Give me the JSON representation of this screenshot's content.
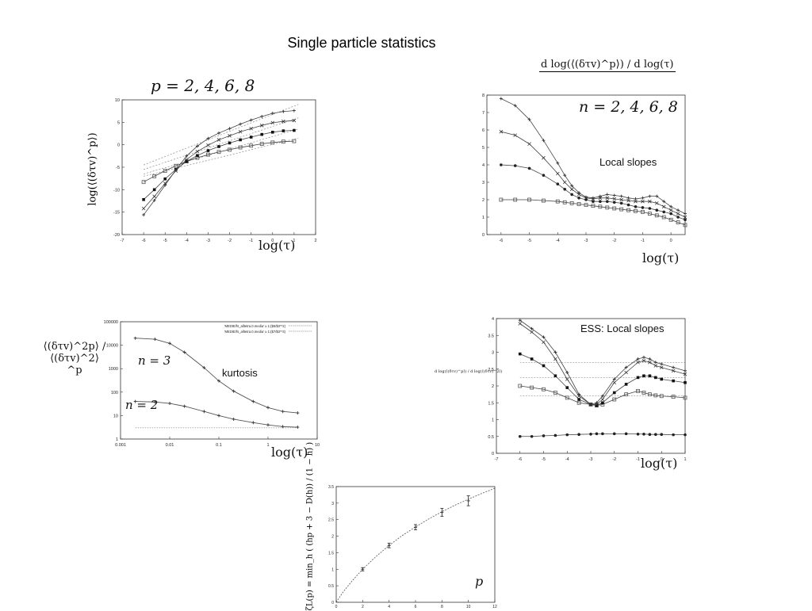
{
  "page": {
    "title": "Single particle statistics"
  },
  "chart_data": [
    {
      "id": "moments",
      "type": "line",
      "title": "p = 2, 4, 6, 8",
      "ylabel": "log(⟨(δτv)^p⟩)",
      "xlabel": "log(τ)",
      "xlim": [
        -7,
        2
      ],
      "ylim": [
        -20,
        10
      ],
      "xticks": [
        -7,
        -6,
        -5,
        -4,
        -3,
        -2,
        -1,
        0,
        1,
        2
      ],
      "yticks": [
        -20,
        -15,
        -10,
        -5,
        0,
        5,
        10
      ],
      "x": [
        -6,
        -5.5,
        -5,
        -4.5,
        -4,
        -3.5,
        -3,
        -2.5,
        -2,
        -1.5,
        -1,
        -0.5,
        0,
        0.5,
        1
      ],
      "series": [
        {
          "values": [
            -8.3,
            -7.0,
            -5.8,
            -4.7,
            -3.7,
            -2.9,
            -2.2,
            -1.6,
            -1.1,
            -0.6,
            -0.2,
            0.2,
            0.5,
            0.7,
            0.8
          ]
        },
        {
          "values": [
            -12.2,
            -10.0,
            -7.6,
            -5.5,
            -3.7,
            -2.4,
            -1.3,
            -0.4,
            0.4,
            1.1,
            1.7,
            2.3,
            2.8,
            3.1,
            3.2
          ]
        },
        {
          "values": [
            -14.2,
            -11.5,
            -8.6,
            -5.8,
            -3.3,
            -1.5,
            -0.1,
            1.1,
            2.0,
            2.9,
            3.6,
            4.3,
            4.9,
            5.2,
            5.4
          ]
        },
        {
          "values": [
            -15.6,
            -12.4,
            -9.0,
            -5.6,
            -2.5,
            -0.3,
            1.4,
            2.6,
            3.6,
            4.6,
            5.5,
            6.3,
            7.0,
            7.4,
            7.6
          ]
        }
      ],
      "guides": [
        {
          "x": [
            -6,
            1.2
          ],
          "y": [
            -4.5,
            9.0
          ]
        },
        {
          "x": [
            -6,
            1.2
          ],
          "y": [
            -5.5,
            6.0
          ]
        },
        {
          "x": [
            -6,
            1.2
          ],
          "y": [
            -6.5,
            3.5
          ]
        },
        {
          "x": [
            -6,
            1.2
          ],
          "y": [
            -7.0,
            1.5
          ]
        }
      ]
    },
    {
      "id": "local-slopes",
      "type": "line",
      "title": "d log(⟨(δτv)^p⟩) / d log(τ)",
      "label_n": "n = 2, 4, 6, 8",
      "annotation": "Local slopes",
      "xlabel": "log(τ)",
      "xlim": [
        -6.5,
        0.5
      ],
      "ylim": [
        0,
        8
      ],
      "xticks": [
        -6,
        -5,
        -4,
        -3,
        -2,
        -1,
        0
      ],
      "yticks": [
        0,
        1,
        2,
        3,
        4,
        5,
        6,
        7,
        8
      ],
      "x": [
        -6,
        -5.5,
        -5,
        -4.5,
        -4,
        -3.75,
        -3.5,
        -3.25,
        -3,
        -2.75,
        -2.5,
        -2.25,
        -2,
        -1.75,
        -1.5,
        -1.25,
        -1,
        -0.75,
        -0.5,
        -0.25,
        0,
        0.25,
        0.5
      ],
      "series": [
        {
          "values": [
            2.0,
            2.0,
            2.0,
            1.95,
            1.9,
            1.85,
            1.8,
            1.75,
            1.7,
            1.65,
            1.6,
            1.55,
            1.5,
            1.45,
            1.4,
            1.35,
            1.3,
            1.2,
            1.1,
            1.0,
            0.85,
            0.7,
            0.55
          ]
        },
        {
          "values": [
            4.0,
            3.95,
            3.8,
            3.4,
            2.9,
            2.6,
            2.3,
            2.1,
            2.0,
            1.9,
            1.9,
            1.9,
            1.85,
            1.8,
            1.7,
            1.6,
            1.55,
            1.5,
            1.4,
            1.3,
            1.2,
            1.0,
            0.85
          ]
        },
        {
          "values": [
            5.9,
            5.7,
            5.2,
            4.4,
            3.5,
            3.0,
            2.6,
            2.3,
            2.1,
            2.05,
            2.1,
            2.1,
            2.05,
            2.0,
            1.95,
            1.9,
            1.9,
            1.9,
            1.8,
            1.6,
            1.4,
            1.2,
            1.0
          ]
        },
        {
          "values": [
            7.8,
            7.4,
            6.6,
            5.4,
            4.1,
            3.4,
            2.8,
            2.4,
            2.15,
            2.1,
            2.2,
            2.3,
            2.25,
            2.2,
            2.1,
            2.05,
            2.1,
            2.2,
            2.2,
            1.9,
            1.6,
            1.4,
            1.2
          ]
        }
      ]
    },
    {
      "id": "kurtosis",
      "type": "line",
      "ylabel": "⟨(δτv)^2p⟩ / ⟨(δτv)^2⟩^p",
      "xlabel": "log(τ)",
      "annotation": "kurtosis",
      "scale": "log-log",
      "xlim": [
        0.001,
        10
      ],
      "ylim": [
        1,
        100000
      ],
      "xticks": [
        "0.001",
        "0.01",
        "0.1",
        "1",
        "10"
      ],
      "yticks": [
        "1",
        "10",
        "100",
        "1000",
        "10000",
        "100000"
      ],
      "legend": [
        "'MEDIE/fs_alltetra.0.media' u 1:($5/$3**2)",
        "'MEDIE/fs_alltetra.0.media' u 1:($7/$3**3)"
      ],
      "legend_position": "top-right",
      "series": [
        {
          "name": "n = 2",
          "x": [
            0.002,
            0.005,
            0.01,
            0.02,
            0.05,
            0.1,
            0.2,
            0.5,
            1,
            2,
            4
          ],
          "values": [
            40,
            38,
            33,
            25,
            15,
            10,
            7,
            5,
            4,
            3.4,
            3.2
          ]
        },
        {
          "name": "n = 3",
          "x": [
            0.002,
            0.005,
            0.01,
            0.02,
            0.05,
            0.1,
            0.2,
            0.5,
            1,
            2,
            4
          ],
          "values": [
            20000,
            18000,
            12000,
            5000,
            1100,
            300,
            110,
            40,
            22,
            15,
            13
          ]
        }
      ],
      "reference": {
        "x": [
          0.002,
          4
        ],
        "value": 3
      }
    },
    {
      "id": "ess-local-slopes",
      "type": "line",
      "annotation": "ESS: Local slopes",
      "ylabel": "d log(⟨(δτv)^p⟩) / d log(⟨(δτv)^2⟩)",
      "xlabel": "log(τ)",
      "xlim": [
        -7,
        1
      ],
      "ylim": [
        0,
        4
      ],
      "xticks": [
        -7,
        -6,
        -5,
        -4,
        -3,
        -2,
        -1,
        0,
        1
      ],
      "yticks": [
        0,
        0.5,
        1,
        1.5,
        2,
        2.5,
        3,
        3.5,
        4
      ],
      "x": [
        -6,
        -5.5,
        -5,
        -4.5,
        -4,
        -3.5,
        -3,
        -2.75,
        -2.5,
        -2,
        -1.5,
        -1,
        -0.75,
        -0.5,
        -0.25,
        0,
        0.5,
        1
      ],
      "series": [
        {
          "values": [
            0.5,
            0.5,
            0.52,
            0.53,
            0.55,
            0.56,
            0.57,
            0.58,
            0.58,
            0.58,
            0.58,
            0.57,
            0.57,
            0.56,
            0.56,
            0.56,
            0.55,
            0.55
          ]
        },
        {
          "values": [
            2.0,
            1.95,
            1.9,
            1.8,
            1.65,
            1.5,
            1.45,
            1.42,
            1.45,
            1.6,
            1.75,
            1.85,
            1.8,
            1.75,
            1.72,
            1.7,
            1.68,
            1.65
          ]
        },
        {
          "values": [
            2.95,
            2.8,
            2.6,
            2.3,
            1.95,
            1.6,
            1.45,
            1.42,
            1.5,
            1.8,
            2.05,
            2.25,
            2.3,
            2.3,
            2.25,
            2.2,
            2.15,
            2.1
          ]
        },
        {
          "values": [
            3.85,
            3.6,
            3.3,
            2.8,
            2.2,
            1.7,
            1.45,
            1.45,
            1.6,
            2.1,
            2.4,
            2.7,
            2.75,
            2.7,
            2.6,
            2.55,
            2.45,
            2.35
          ]
        },
        {
          "values": [
            3.95,
            3.7,
            3.45,
            3.0,
            2.4,
            1.75,
            1.45,
            1.5,
            1.7,
            2.2,
            2.55,
            2.8,
            2.85,
            2.8,
            2.7,
            2.65,
            2.55,
            2.45
          ]
        }
      ],
      "references": [
        1.7,
        2.25,
        2.7
      ]
    },
    {
      "id": "scaling-exponents",
      "type": "line",
      "ylabel": "ζL(p) = min_h ( (hp + 3 − D(h)) / (1 − h) )",
      "xlabel": "p",
      "xlim": [
        0,
        12
      ],
      "ylim": [
        0,
        3.5
      ],
      "xticks": [
        0,
        2,
        4,
        6,
        8,
        10,
        12
      ],
      "yticks": [
        0,
        0.5,
        1,
        1.5,
        2,
        2.5,
        3,
        3.5
      ],
      "points": {
        "x": [
          2,
          4,
          6,
          8,
          10
        ],
        "values": [
          1.0,
          1.72,
          2.27,
          2.72,
          3.07
        ],
        "errors": [
          0.05,
          0.07,
          0.08,
          0.12,
          0.15
        ]
      },
      "curve": {
        "x": [
          0,
          0.5,
          1,
          1.5,
          2,
          3,
          4,
          5,
          6,
          7,
          8,
          9,
          10,
          11,
          12
        ],
        "values": [
          0,
          0.3,
          0.55,
          0.78,
          1.0,
          1.38,
          1.72,
          2.02,
          2.28,
          2.52,
          2.74,
          2.94,
          3.12,
          3.29,
          3.45
        ]
      }
    }
  ]
}
